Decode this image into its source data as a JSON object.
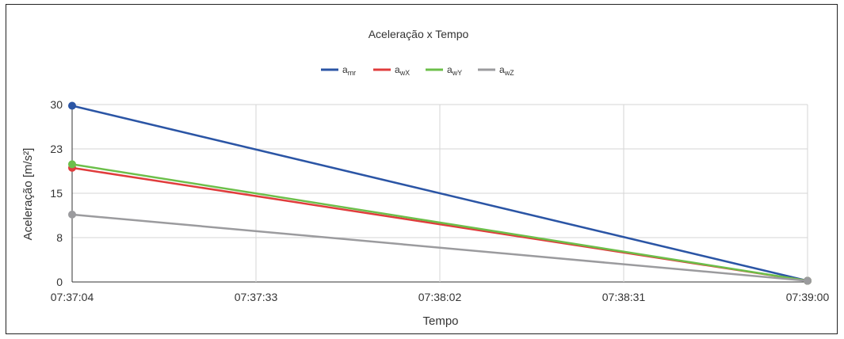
{
  "chart_data": {
    "type": "line",
    "title": "Aceleração x Tempo",
    "xlabel": "Tempo",
    "ylabel": "Aceleração [m/s²]",
    "x": [
      "07:37:04",
      "07:39:00"
    ],
    "x_ticks": [
      "07:37:04",
      "07:37:33",
      "07:38:02",
      "07:38:31",
      "07:39:00"
    ],
    "y_ticks": [
      "0",
      "8",
      "15",
      "23",
      "30"
    ],
    "ylim": [
      0,
      30
    ],
    "grid": true,
    "legend_position": "top",
    "series": [
      {
        "name": "a",
        "sub": "mr",
        "color": "#2b55a5",
        "values": [
          29.8,
          0.2
        ]
      },
      {
        "name": "a",
        "sub": "wX",
        "color": "#e03c3c",
        "values": [
          19.3,
          0.2
        ]
      },
      {
        "name": "a",
        "sub": "wY",
        "color": "#6cbf4a",
        "values": [
          19.9,
          0.2
        ]
      },
      {
        "name": "a",
        "sub": "wZ",
        "color": "#9b9b9e",
        "values": [
          11.4,
          0.2
        ]
      }
    ]
  }
}
